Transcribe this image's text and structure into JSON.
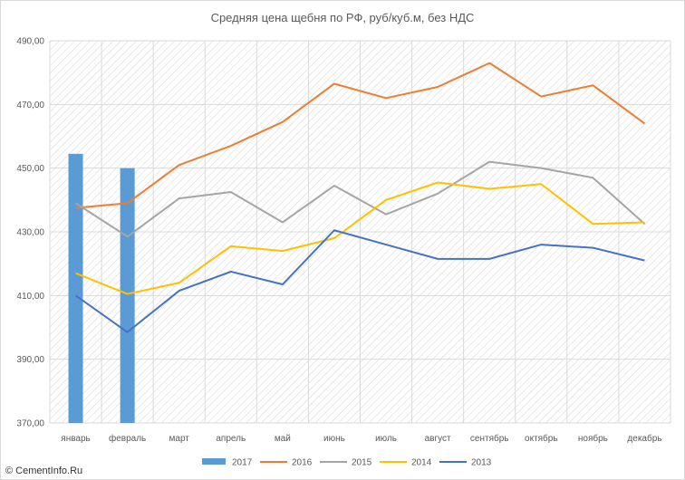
{
  "chart_data": {
    "type": "bar+line",
    "title": "Средняя цена щебня по РФ, руб/куб.м, без НДС",
    "xlabel": "",
    "ylabel": "",
    "ylim": [
      370,
      490
    ],
    "yticks": [
      "370,00",
      "390,00",
      "410,00",
      "430,00",
      "450,00",
      "470,00",
      "490,00"
    ],
    "ytick_values": [
      370,
      390,
      410,
      430,
      450,
      470,
      490
    ],
    "categories": [
      "январь",
      "февраль",
      "март",
      "апрель",
      "май",
      "июнь",
      "июль",
      "август",
      "сентябрь",
      "октябрь",
      "ноябрь",
      "декабрь"
    ],
    "grid": true,
    "legend_position": "bottom",
    "bar_series": {
      "name": "2017",
      "color": "#5b9bd5",
      "values": [
        454.5,
        450,
        null,
        null,
        null,
        null,
        null,
        null,
        null,
        null,
        null,
        null
      ]
    },
    "series": [
      {
        "name": "2016",
        "color": "#ed7d31",
        "values": [
          437.5,
          439,
          451,
          457,
          464.5,
          476.5,
          472,
          475.5,
          483,
          472.5,
          476,
          464
        ]
      },
      {
        "name": "2015",
        "color": "#a5a5a5",
        "values": [
          439,
          428.5,
          440.5,
          442.5,
          433,
          444.5,
          435.5,
          442,
          452,
          450,
          447,
          432.5
        ]
      },
      {
        "name": "2014",
        "color": "#ffc000",
        "values": [
          417,
          410.5,
          414,
          425.5,
          424,
          428,
          440,
          445.5,
          443.5,
          445,
          432.5,
          433
        ]
      },
      {
        "name": "2013",
        "color": "#4472c4",
        "values": [
          410,
          398.5,
          411.5,
          417.5,
          413.5,
          430.5,
          426,
          421.5,
          421.5,
          426,
          425,
          421
        ]
      }
    ]
  },
  "credit": "© CementInfo.Ru"
}
